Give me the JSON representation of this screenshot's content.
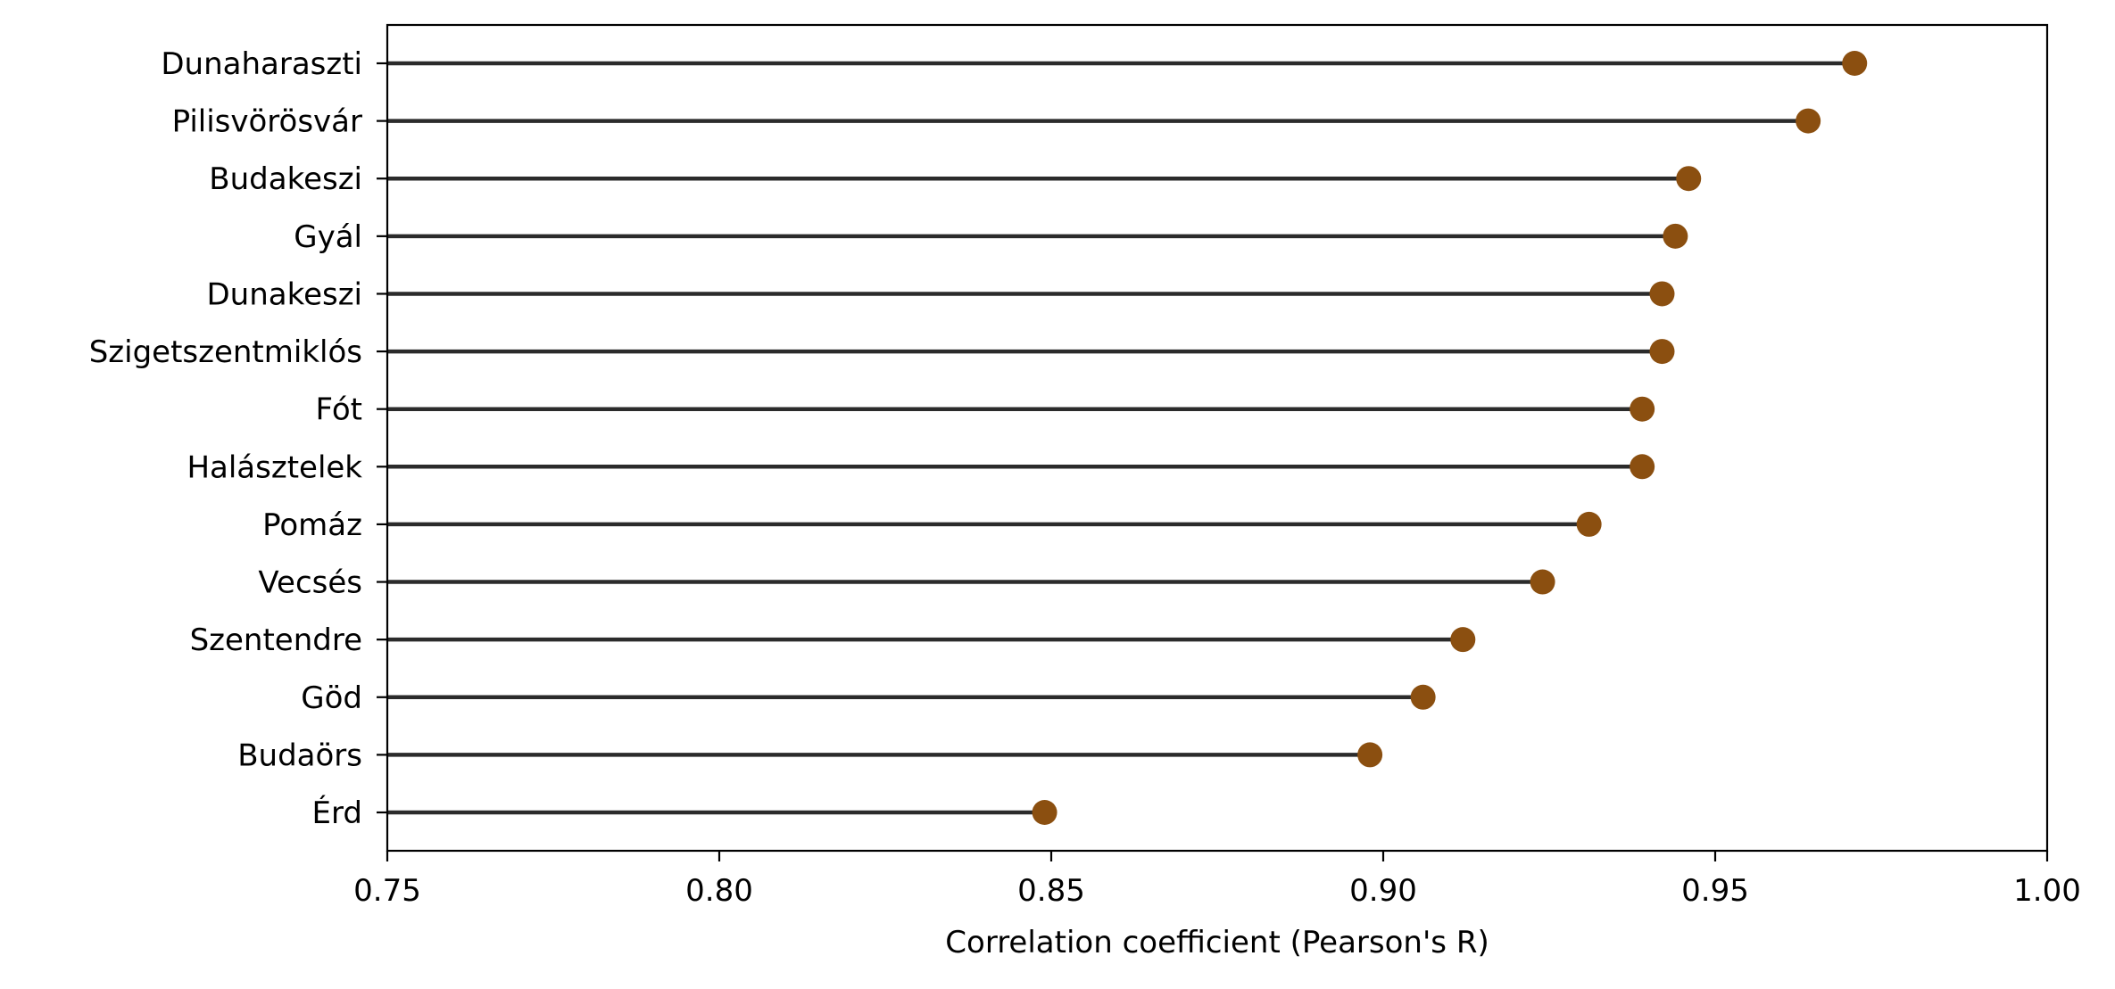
{
  "chart_data": {
    "type": "lollipop",
    "orientation": "horizontal",
    "xlabel": "Correlation coefficient (Pearson's R)",
    "ylabel": "",
    "title": "",
    "xlim": [
      0.75,
      1.0
    ],
    "xticks": [
      "0.75",
      "0.80",
      "0.85",
      "0.90",
      "0.95",
      "1.00"
    ],
    "grid": false,
    "legend": "none",
    "colors": {
      "marker": "#8b4f10",
      "stem": "#2b2b2b"
    },
    "categories": [
      "Dunaharaszti",
      "Pilisvörösvár",
      "Budakeszi",
      "Gyál",
      "Dunakeszi",
      "Szigetszentmiklós",
      "Fót",
      "Halásztelek",
      "Pomáz",
      "Vecsés",
      "Szentendre",
      "Göd",
      "Budaörs",
      "Érd"
    ],
    "values": [
      0.971,
      0.964,
      0.946,
      0.944,
      0.942,
      0.942,
      0.939,
      0.939,
      0.931,
      0.924,
      0.912,
      0.906,
      0.898,
      0.849
    ]
  }
}
